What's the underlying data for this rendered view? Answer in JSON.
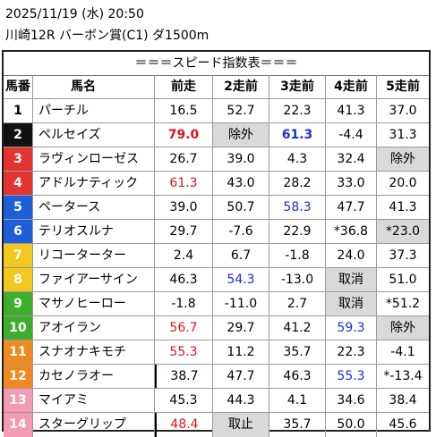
{
  "header": {
    "datetime": "2025/11/19 (水) 20:50",
    "race": "川崎12R バーボン賞(C1) ダ1500m"
  },
  "table": {
    "title": "＝＝＝スピード指数表＝＝＝",
    "columns": [
      "馬番",
      "馬名",
      "前走",
      "2走前",
      "3走前",
      "4走前",
      "5走前"
    ],
    "rows": [
      {
        "no": "1",
        "name": "パーチル",
        "v": [
          "16.5",
          "52.7",
          "22.3",
          "41.3",
          "37.0"
        ]
      },
      {
        "no": "2",
        "name": "ペルセイズ",
        "v": [
          "79.0",
          "除外",
          "61.3",
          "-4.4",
          "31.3"
        ]
      },
      {
        "no": "3",
        "name": "ラヴィンローゼス",
        "v": [
          "26.7",
          "39.0",
          "4.3",
          "32.4",
          "除外"
        ]
      },
      {
        "no": "4",
        "name": "アドルナティック",
        "v": [
          "61.3",
          "43.0",
          "28.2",
          "33.0",
          "20.0"
        ]
      },
      {
        "no": "5",
        "name": "ペータース",
        "v": [
          "39.0",
          "50.7",
          "58.3",
          "47.7",
          "41.3"
        ]
      },
      {
        "no": "6",
        "name": "テリオスルナ",
        "v": [
          "29.7",
          "-7.6",
          "22.9",
          "*36.8",
          "*23.0"
        ]
      },
      {
        "no": "7",
        "name": "リコーターター",
        "v": [
          "2.4",
          "6.7",
          "-1.8",
          "24.0",
          "37.3"
        ]
      },
      {
        "no": "8",
        "name": "ファイアーサイン",
        "v": [
          "46.3",
          "54.3",
          "-13.0",
          "取消",
          "51.0"
        ]
      },
      {
        "no": "9",
        "name": "マサノヒーロー",
        "v": [
          "-1.8",
          "-11.0",
          "2.7",
          "取消",
          "*51.2"
        ]
      },
      {
        "no": "10",
        "name": "アオイラン",
        "v": [
          "56.7",
          "29.7",
          "41.2",
          "59.3",
          "除外"
        ]
      },
      {
        "no": "11",
        "name": "スナオナキモチ",
        "v": [
          "55.3",
          "11.2",
          "35.7",
          "22.3",
          "-4.1"
        ]
      },
      {
        "no": "12",
        "name": "カセノラオー",
        "v": [
          "38.7",
          "47.7",
          "46.3",
          "55.3",
          "*-13.4"
        ]
      },
      {
        "no": "13",
        "name": "マイアミ",
        "v": [
          "45.3",
          "44.3",
          "4.1",
          "34.6",
          "38.4"
        ]
      },
      {
        "no": "14",
        "name": "スターグリップ",
        "v": [
          "48.4",
          "取止",
          "35.7",
          "50.0",
          "45.6"
        ]
      }
    ]
  },
  "colors": {
    "gate_bg": [
      "#ffffff",
      "#111111",
      "#e3342f",
      "#1565c0",
      "#1e88e5",
      "#fbc02d",
      "#43a047",
      "#f57c00",
      "#f48fb1"
    ],
    "gate_fg": [
      "#000000",
      "#ffffff",
      "#ffffff",
      "#ffffff",
      "#ffffff",
      "#ffffff",
      "#ffffff",
      "#ffffff",
      "#ffffff"
    ],
    "red": "#e0141e",
    "blue": "#1a2fd6",
    "gray_cell": "#d9d9d9"
  }
}
